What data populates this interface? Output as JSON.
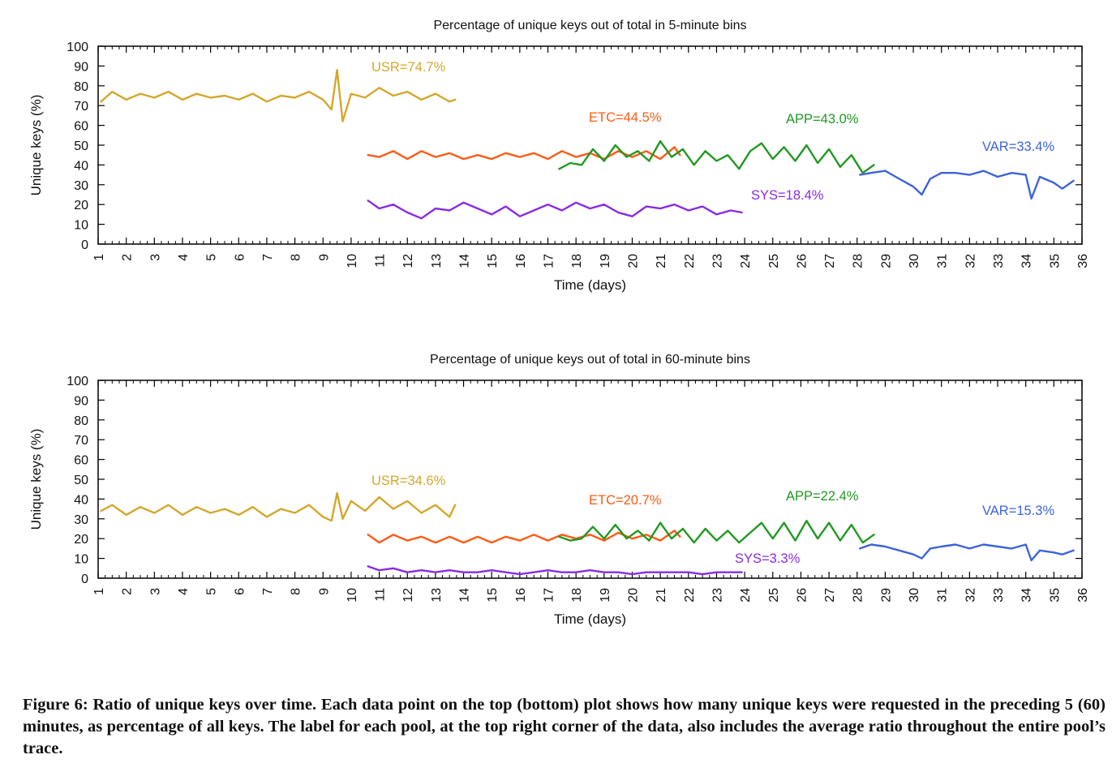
{
  "caption": {
    "label": "Figure 6:",
    "text": "Ratio of unique keys over time. Each data point on the top (bottom) plot shows how many unique keys were requested in the preceding 5 (60) minutes, as percentage of all keys. The label for each pool, at the top right corner of the data, also includes the average ratio throughout the entire pool’s trace."
  },
  "chart_data": [
    {
      "type": "line",
      "title": "Percentage of unique keys out of total in 5-minute bins",
      "xlabel": "Time (days)",
      "ylabel": "Unique keys (%)",
      "xlim": [
        1,
        36
      ],
      "ylim": [
        0,
        100
      ],
      "x_ticks": [
        1,
        2,
        3,
        4,
        5,
        6,
        7,
        8,
        9,
        10,
        11,
        12,
        13,
        14,
        15,
        16,
        17,
        18,
        19,
        20,
        21,
        22,
        23,
        24,
        25,
        26,
        27,
        28,
        29,
        30,
        31,
        32,
        33,
        34,
        35,
        36
      ],
      "y_ticks": [
        0,
        10,
        20,
        30,
        40,
        50,
        60,
        70,
        80,
        90,
        100
      ],
      "grid": false,
      "series": [
        {
          "name": "USR",
          "label": "USR=74.7%",
          "color": "#d4a72c",
          "x": [
            1.1,
            1.5,
            2.0,
            2.5,
            3.0,
            3.5,
            4.0,
            4.5,
            5.0,
            5.5,
            6.0,
            6.5,
            7.0,
            7.5,
            8.0,
            8.5,
            9.0,
            9.3,
            9.5,
            9.7,
            10.0,
            10.5,
            11.0,
            11.5,
            12.0,
            12.5,
            13.0,
            13.5,
            13.7
          ],
          "y": [
            72,
            77,
            73,
            76,
            74,
            77,
            73,
            76,
            74,
            75,
            73,
            76,
            72,
            75,
            74,
            77,
            73,
            68,
            88,
            62,
            76,
            74,
            79,
            75,
            77,
            73,
            76,
            72,
            73
          ]
        },
        {
          "name": "ETC",
          "label": "ETC=44.5%",
          "color": "#ff5a14",
          "x": [
            10.6,
            11.0,
            11.5,
            12.0,
            12.5,
            13.0,
            13.5,
            14.0,
            14.5,
            15.0,
            15.5,
            16.0,
            16.5,
            17.0,
            17.5,
            18.0,
            18.5,
            19.0,
            19.5,
            20.0,
            20.5,
            21.0,
            21.5,
            21.7
          ],
          "y": [
            45,
            44,
            47,
            43,
            47,
            44,
            46,
            43,
            45,
            43,
            46,
            44,
            46,
            43,
            47,
            44,
            46,
            43,
            47,
            44,
            47,
            43,
            49,
            45
          ]
        },
        {
          "name": "APP",
          "label": "APP=43.0%",
          "color": "#229922",
          "x": [
            17.4,
            17.8,
            18.2,
            18.6,
            19.0,
            19.4,
            19.8,
            20.2,
            20.6,
            21.0,
            21.4,
            21.8,
            22.2,
            22.6,
            23.0,
            23.4,
            23.8,
            24.2,
            24.6,
            25.0,
            25.4,
            25.8,
            26.2,
            26.6,
            27.0,
            27.4,
            27.8,
            28.2,
            28.6
          ],
          "y": [
            38,
            41,
            40,
            48,
            42,
            50,
            44,
            47,
            42,
            52,
            44,
            48,
            40,
            47,
            42,
            45,
            38,
            47,
            51,
            43,
            49,
            42,
            50,
            41,
            48,
            39,
            45,
            36,
            40
          ]
        },
        {
          "name": "SYS",
          "label": "SYS=18.4%",
          "color": "#8a2be2",
          "x": [
            10.6,
            11.0,
            11.5,
            12.0,
            12.5,
            13.0,
            13.5,
            14.0,
            14.5,
            15.0,
            15.5,
            16.0,
            16.5,
            17.0,
            17.5,
            18.0,
            18.5,
            19.0,
            19.5,
            20.0,
            20.5,
            21.0,
            21.5,
            22.0,
            22.5,
            23.0,
            23.5,
            23.9
          ],
          "y": [
            22,
            18,
            20,
            16,
            13,
            18,
            17,
            21,
            18,
            15,
            19,
            14,
            17,
            20,
            17,
            21,
            18,
            20,
            16,
            14,
            19,
            18,
            20,
            17,
            19,
            15,
            17,
            16
          ]
        },
        {
          "name": "VAR",
          "label": "VAR=33.4%",
          "color": "#3d63d8",
          "x": [
            28.1,
            28.5,
            29.0,
            29.5,
            30.0,
            30.3,
            30.6,
            31.0,
            31.5,
            32.0,
            32.5,
            33.0,
            33.5,
            34.0,
            34.2,
            34.5,
            35.0,
            35.3,
            35.7
          ],
          "y": [
            35,
            36,
            37,
            33,
            29,
            25,
            33,
            36,
            36,
            35,
            37,
            34,
            36,
            35,
            23,
            34,
            31,
            28,
            32
          ]
        }
      ]
    },
    {
      "type": "line",
      "title": "Percentage of unique keys out of total in 60-minute bins",
      "xlabel": "Time (days)",
      "ylabel": "Unique keys (%)",
      "xlim": [
        1,
        36
      ],
      "ylim": [
        0,
        100
      ],
      "x_ticks": [
        1,
        2,
        3,
        4,
        5,
        6,
        7,
        8,
        9,
        10,
        11,
        12,
        13,
        14,
        15,
        16,
        17,
        18,
        19,
        20,
        21,
        22,
        23,
        24,
        25,
        26,
        27,
        28,
        29,
        30,
        31,
        32,
        33,
        34,
        35,
        36
      ],
      "y_ticks": [
        0,
        10,
        20,
        30,
        40,
        50,
        60,
        70,
        80,
        90,
        100
      ],
      "grid": false,
      "series": [
        {
          "name": "USR",
          "label": "USR=34.6%",
          "color": "#d4a72c",
          "x": [
            1.1,
            1.5,
            2.0,
            2.5,
            3.0,
            3.5,
            4.0,
            4.5,
            5.0,
            5.5,
            6.0,
            6.5,
            7.0,
            7.5,
            8.0,
            8.5,
            9.0,
            9.3,
            9.5,
            9.7,
            10.0,
            10.5,
            11.0,
            11.5,
            12.0,
            12.5,
            13.0,
            13.5,
            13.7
          ],
          "y": [
            34,
            37,
            32,
            36,
            33,
            37,
            32,
            36,
            33,
            35,
            32,
            36,
            31,
            35,
            33,
            37,
            31,
            29,
            43,
            30,
            39,
            34,
            41,
            35,
            39,
            33,
            37,
            31,
            37
          ]
        },
        {
          "name": "ETC",
          "label": "ETC=20.7%",
          "color": "#ff5a14",
          "x": [
            10.6,
            11.0,
            11.5,
            12.0,
            12.5,
            13.0,
            13.5,
            14.0,
            14.5,
            15.0,
            15.5,
            16.0,
            16.5,
            17.0,
            17.5,
            18.0,
            18.5,
            19.0,
            19.5,
            20.0,
            20.5,
            21.0,
            21.5,
            21.7
          ],
          "y": [
            22,
            18,
            22,
            19,
            21,
            18,
            21,
            18,
            21,
            18,
            21,
            19,
            22,
            19,
            22,
            20,
            22,
            19,
            23,
            20,
            22,
            19,
            24,
            21
          ]
        },
        {
          "name": "APP",
          "label": "APP=22.4%",
          "color": "#229922",
          "x": [
            17.4,
            17.8,
            18.2,
            18.6,
            19.0,
            19.4,
            19.8,
            20.2,
            20.6,
            21.0,
            21.4,
            21.8,
            22.2,
            22.6,
            23.0,
            23.4,
            23.8,
            24.2,
            24.6,
            25.0,
            25.4,
            25.8,
            26.2,
            26.6,
            27.0,
            27.4,
            27.8,
            28.2,
            28.6
          ],
          "y": [
            21,
            19,
            20,
            26,
            20,
            27,
            20,
            24,
            19,
            28,
            20,
            25,
            18,
            25,
            19,
            24,
            18,
            23,
            28,
            20,
            28,
            19,
            29,
            20,
            28,
            19,
            27,
            18,
            22
          ]
        },
        {
          "name": "SYS",
          "label": "SYS=3.3%",
          "color": "#8a2be2",
          "x": [
            10.6,
            11.0,
            11.5,
            12.0,
            12.5,
            13.0,
            13.5,
            14.0,
            14.5,
            15.0,
            15.5,
            16.0,
            16.5,
            17.0,
            17.5,
            18.0,
            18.5,
            19.0,
            19.5,
            20.0,
            20.5,
            21.0,
            21.5,
            22.0,
            22.5,
            23.0,
            23.5,
            23.9
          ],
          "y": [
            6,
            4,
            5,
            3,
            4,
            3,
            4,
            3,
            3,
            4,
            3,
            2,
            3,
            4,
            3,
            3,
            4,
            3,
            3,
            2,
            3,
            3,
            3,
            3,
            2,
            3,
            3,
            3
          ]
        },
        {
          "name": "VAR",
          "label": "VAR=15.3%",
          "color": "#3d63d8",
          "x": [
            28.1,
            28.5,
            29.0,
            29.5,
            30.0,
            30.3,
            30.6,
            31.0,
            31.5,
            32.0,
            32.5,
            33.0,
            33.5,
            34.0,
            34.2,
            34.5,
            35.0,
            35.3,
            35.7
          ],
          "y": [
            15,
            17,
            16,
            14,
            12,
            10,
            15,
            16,
            17,
            15,
            17,
            16,
            15,
            17,
            9,
            14,
            13,
            12,
            14
          ]
        }
      ]
    }
  ]
}
